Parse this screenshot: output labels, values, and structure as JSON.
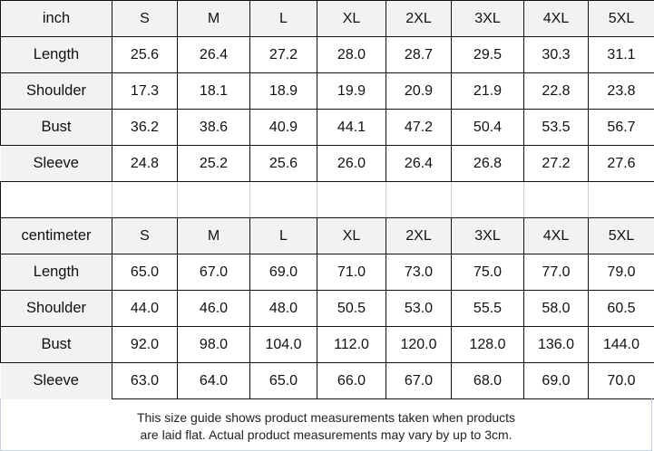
{
  "sizes": [
    "S",
    "M",
    "L",
    "XL",
    "2XL",
    "3XL",
    "4XL",
    "5XL"
  ],
  "inch": {
    "unit": "inch",
    "rows": [
      {
        "label": "Length",
        "values": [
          "25.6",
          "26.4",
          "27.2",
          "28.0",
          "28.7",
          "29.5",
          "30.3",
          "31.1"
        ]
      },
      {
        "label": "Shoulder",
        "values": [
          "17.3",
          "18.1",
          "18.9",
          "19.9",
          "20.9",
          "21.9",
          "22.8",
          "23.8"
        ]
      },
      {
        "label": "Bust",
        "values": [
          "36.2",
          "38.6",
          "40.9",
          "44.1",
          "47.2",
          "50.4",
          "53.5",
          "56.7"
        ]
      },
      {
        "label": "Sleeve",
        "values": [
          "24.8",
          "25.2",
          "25.6",
          "26.0",
          "26.4",
          "26.8",
          "27.2",
          "27.6"
        ]
      }
    ]
  },
  "centimeter": {
    "unit": "centimeter",
    "rows": [
      {
        "label": "Length",
        "values": [
          "65.0",
          "67.0",
          "69.0",
          "71.0",
          "73.0",
          "75.0",
          "77.0",
          "79.0"
        ]
      },
      {
        "label": "Shoulder",
        "values": [
          "44.0",
          "46.0",
          "48.0",
          "50.5",
          "53.0",
          "55.5",
          "58.0",
          "60.5"
        ]
      },
      {
        "label": "Bust",
        "values": [
          "92.0",
          "98.0",
          "104.0",
          "112.0",
          "120.0",
          "128.0",
          "136.0",
          "144.0"
        ]
      },
      {
        "label": "Sleeve",
        "values": [
          "63.0",
          "64.0",
          "65.0",
          "66.0",
          "67.0",
          "68.0",
          "69.0",
          "70.0"
        ]
      }
    ]
  },
  "note": {
    "line1": "This size guide shows product measurements taken when products",
    "line2": "are laid flat. Actual product measurements may vary by up to 3cm."
  }
}
